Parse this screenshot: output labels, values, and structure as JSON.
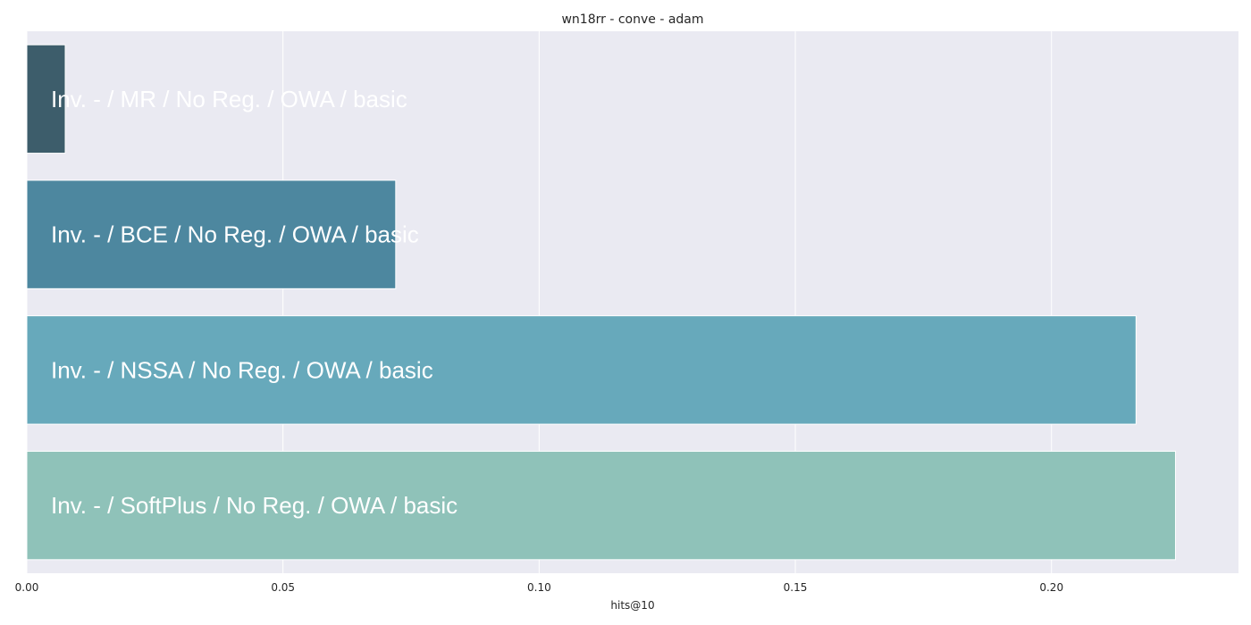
{
  "chart_data": {
    "type": "bar",
    "orientation": "horizontal",
    "title": "wn18rr - conve - adam",
    "xlabel": "hits@10",
    "ylabel": "",
    "xlim": [
      0,
      0.2365
    ],
    "xticks": [
      "0.00",
      "0.05",
      "0.10",
      "0.15",
      "0.20"
    ],
    "xtick_values": [
      0.0,
      0.05,
      0.1,
      0.15,
      0.2
    ],
    "grid": true,
    "legend": "none",
    "categories": [
      "Inv. - / MR / No Reg. / OWA / basic",
      "Inv. - / BCE / No Reg. / OWA / basic",
      "Inv. - / NSSA / No Reg. / OWA / basic",
      "Inv. - / SoftPlus / No Reg. / OWA / basic"
    ],
    "values": [
      0.0075,
      0.072,
      0.2165,
      0.2242
    ],
    "colors": [
      "#3d5d6b",
      "#4d879f",
      "#67a9bb",
      "#8fc2b9"
    ],
    "background_color": "#eaeaf2",
    "grid_color": "#ffffff",
    "label_color": "#ffffff"
  }
}
